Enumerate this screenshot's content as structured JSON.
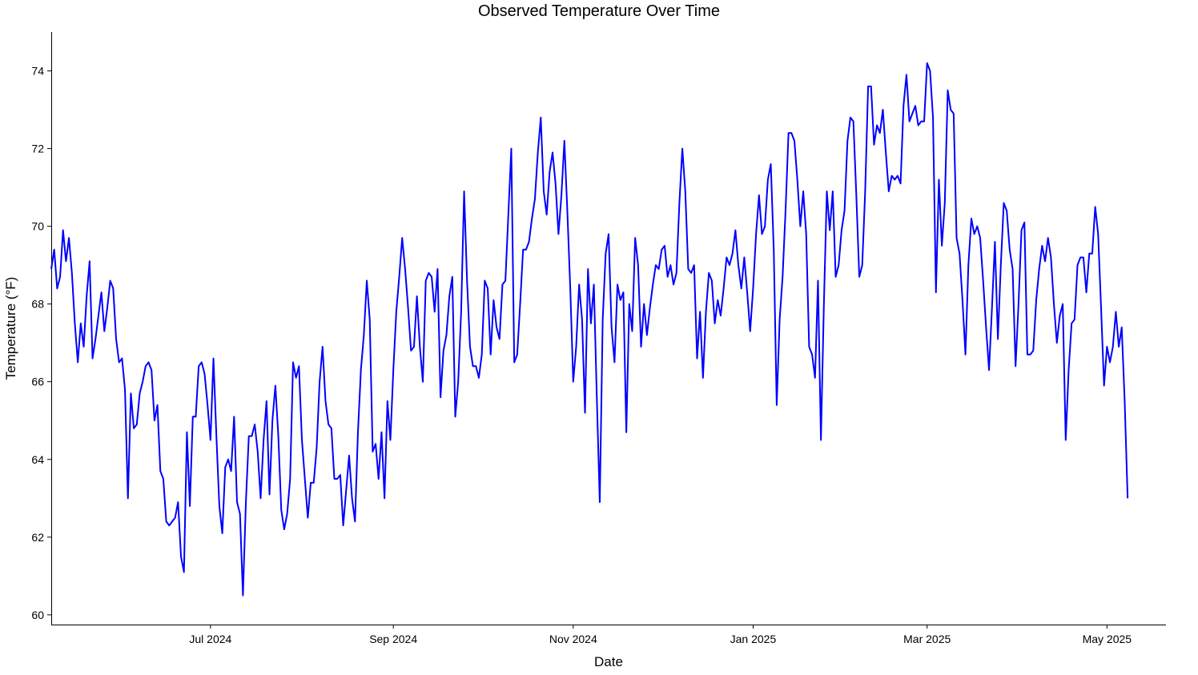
{
  "chart_data": {
    "type": "line",
    "title": "Observed Temperature Over Time",
    "xlabel": "Date",
    "ylabel": "Temperature (°F)",
    "xlim": [
      "2024-05-08",
      "2025-05-21"
    ],
    "ylim": [
      59.75,
      75
    ],
    "xticks": [
      {
        "date": "2024-07-01",
        "label": "Jul 2024"
      },
      {
        "date": "2024-09-01",
        "label": "Sep 2024"
      },
      {
        "date": "2024-11-01",
        "label": "Nov 2024"
      },
      {
        "date": "2025-01-01",
        "label": "Jan 2025"
      },
      {
        "date": "2025-03-01",
        "label": "Mar 2025"
      },
      {
        "date": "2025-05-01",
        "label": "May 2025"
      }
    ],
    "yticks": [
      60,
      62,
      64,
      66,
      68,
      70,
      72,
      74
    ],
    "grid": false,
    "legend": "none",
    "color": "#0000ff",
    "series": [
      {
        "x_start": "2024-05-08",
        "x_step_days": 1,
        "y": [
          68.9,
          69.4,
          68.4,
          68.7,
          69.9,
          69.1,
          69.7,
          68.8,
          67.5,
          66.5,
          67.5,
          66.9,
          68.2,
          69.1,
          66.6,
          67.1,
          67.7,
          68.3,
          67.3,
          67.9,
          68.6,
          68.4,
          67.1,
          66.5,
          66.6,
          65.8,
          63.0,
          65.7,
          64.8,
          64.9,
          65.7,
          66.0,
          66.4,
          66.5,
          66.3,
          65.0,
          65.4,
          63.7,
          63.5,
          62.4,
          62.3,
          62.4,
          62.5,
          62.9,
          61.5,
          61.1,
          64.7,
          62.8,
          65.1,
          65.1,
          66.4,
          66.5,
          66.2,
          65.4,
          64.5,
          66.6,
          64.6,
          62.8,
          62.1,
          63.8,
          64.0,
          63.7,
          65.1,
          62.9,
          62.6,
          60.5,
          62.9,
          64.6,
          64.6,
          64.9,
          64.2,
          63.0,
          64.5,
          65.5,
          63.1,
          65.0,
          65.9,
          64.6,
          62.7,
          62.2,
          62.6,
          63.5,
          66.5,
          66.1,
          66.4,
          64.5,
          63.5,
          62.5,
          63.4,
          63.4,
          64.3,
          66.0,
          66.9,
          65.5,
          64.9,
          64.8,
          63.5,
          63.5,
          63.6,
          62.3,
          63.2,
          64.1,
          63.0,
          62.4,
          64.7,
          66.3,
          67.2,
          68.6,
          67.6,
          64.2,
          64.4,
          63.5,
          64.7,
          63.0,
          65.5,
          64.5,
          66.3,
          67.8,
          68.7,
          69.7,
          68.9,
          67.9,
          66.8,
          66.9,
          68.2,
          66.9,
          66.0,
          68.6,
          68.8,
          68.7,
          67.8,
          68.9,
          65.6,
          66.8,
          67.2,
          68.2,
          68.7,
          65.1,
          66.0,
          67.8,
          70.9,
          68.6,
          66.9,
          66.4,
          66.4,
          66.1,
          66.7,
          68.6,
          68.4,
          66.7,
          68.1,
          67.4,
          67.1,
          68.5,
          68.6,
          70.3,
          72.0,
          66.5,
          66.7,
          68.0,
          69.4,
          69.4,
          69.6,
          70.2,
          70.7,
          71.9,
          72.8,
          70.9,
          70.3,
          71.4,
          71.9,
          71.1,
          69.8,
          70.8,
          72.2,
          70.4,
          68.4,
          66.0,
          66.9,
          68.5,
          67.6,
          65.2,
          68.9,
          67.5,
          68.5,
          65.6,
          62.9,
          67.6,
          69.3,
          69.8,
          67.4,
          66.5,
          68.5,
          68.1,
          68.3,
          64.7,
          68.0,
          67.3,
          69.7,
          69.0,
          66.9,
          68.0,
          67.2,
          67.9,
          68.5,
          69.0,
          68.9,
          69.4,
          69.5,
          68.7,
          69.0,
          68.5,
          68.8,
          70.6,
          72.0,
          70.9,
          68.9,
          68.8,
          69.0,
          66.6,
          67.8,
          66.1,
          67.8,
          68.8,
          68.6,
          67.5,
          68.1,
          67.7,
          68.4,
          69.2,
          69.0,
          69.3,
          69.9,
          69.0,
          68.4,
          69.2,
          68.3,
          67.3,
          68.4,
          69.8,
          70.8,
          69.8,
          70.0,
          71.2,
          71.6,
          69.4,
          65.4,
          67.6,
          68.7,
          70.4,
          72.4,
          72.4,
          72.2,
          71.2,
          70.0,
          70.9,
          69.8,
          66.9,
          66.7,
          66.1,
          68.6,
          64.5,
          68.0,
          70.9,
          69.9,
          70.9,
          68.7,
          69.0,
          69.9,
          70.4,
          72.2,
          72.8,
          72.7,
          70.8,
          68.7,
          69.0,
          70.9,
          73.6,
          73.6,
          72.1,
          72.6,
          72.4,
          73.0,
          71.9,
          70.9,
          71.3,
          71.2,
          71.3,
          71.1,
          73.1,
          73.9,
          72.7,
          72.9,
          73.1,
          72.6,
          72.7,
          72.7,
          74.2,
          74.0,
          72.8,
          68.3,
          71.2,
          69.5,
          70.6,
          73.5,
          73.0,
          72.9,
          69.7,
          69.3,
          68.1,
          66.7,
          69.0,
          70.2,
          69.8,
          70.0,
          69.7,
          68.6,
          67.4,
          66.3,
          67.9,
          69.6,
          67.1,
          69.0,
          70.6,
          70.4,
          69.4,
          68.9,
          66.4,
          68.0,
          69.9,
          70.1,
          66.7,
          66.7,
          66.8,
          68.1,
          68.9,
          69.5,
          69.1,
          69.7,
          69.2,
          68.0,
          67.0,
          67.7,
          68.0,
          64.5,
          66.3,
          67.5,
          67.6,
          69.0,
          69.2,
          69.2,
          68.3,
          69.3,
          69.3,
          70.5,
          69.8,
          67.9,
          65.9,
          66.9,
          66.5,
          66.9,
          67.8,
          66.9,
          67.4,
          65.5,
          63.0
        ]
      }
    ]
  }
}
